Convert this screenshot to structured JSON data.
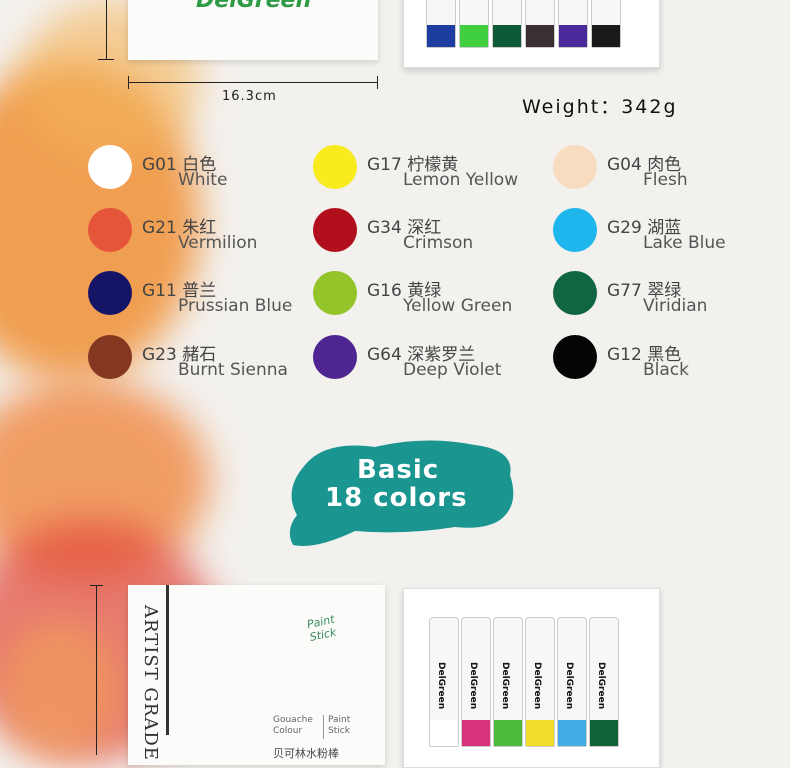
{
  "top": {
    "width_label": "16.3cm",
    "weight_label": "Weight：342g",
    "brand": "DelGreen",
    "stick_colors": [
      "#1d3ea0",
      "#3fcf3f",
      "#0f5a36",
      "#3a3033",
      "#4a2a9a",
      "#1a1a1a"
    ]
  },
  "swatches": [
    {
      "code": "G01 白色",
      "name": "White",
      "color": "#ffffff"
    },
    {
      "code": "G17 柠檬黄",
      "name": "Lemon Yellow",
      "color": "#f8ec1e"
    },
    {
      "code": "G04 肉色",
      "name": "Flesh",
      "color": "#f8dcc0"
    },
    {
      "code": "G21 朱红",
      "name": "Vermilion",
      "color": "#e4553a"
    },
    {
      "code": "G34 深红",
      "name": "Crimson",
      "color": "#b20f1c"
    },
    {
      "code": "G29 湖蓝",
      "name": "Lake Blue",
      "color": "#1fb6ee"
    },
    {
      "code": "G11 普兰",
      "name": "Prussian Blue",
      "color": "#161467"
    },
    {
      "code": "G16 黄绿",
      "name": "Yellow Green",
      "color": "#93c52a"
    },
    {
      "code": "G77 翠绿",
      "name": "Viridian",
      "color": "#106640"
    },
    {
      "code": "G23 赭石",
      "name": "Burnt Sienna",
      "color": "#84381f"
    },
    {
      "code": "G64 深紫罗兰",
      "name": "Deep Violet",
      "color": "#4f2591"
    },
    {
      "code": "G12 黑色",
      "name": "Black",
      "color": "#050505"
    }
  ],
  "banner": {
    "line1": "Basic",
    "line2": "18 colors",
    "color": "#1a9590"
  },
  "bottom": {
    "box_side": "ARTIST GRADE",
    "logo": "Paint Stick",
    "label_left": "Gouache Colour",
    "label_right": "Paint Stick",
    "cn_text": "贝可林水粉棒",
    "brand": "DelGreen",
    "stick_colors": [
      "#ffffff",
      "#d8327a",
      "#4cbb3c",
      "#f2dc2a",
      "#42ace6",
      "#0d6238"
    ]
  }
}
